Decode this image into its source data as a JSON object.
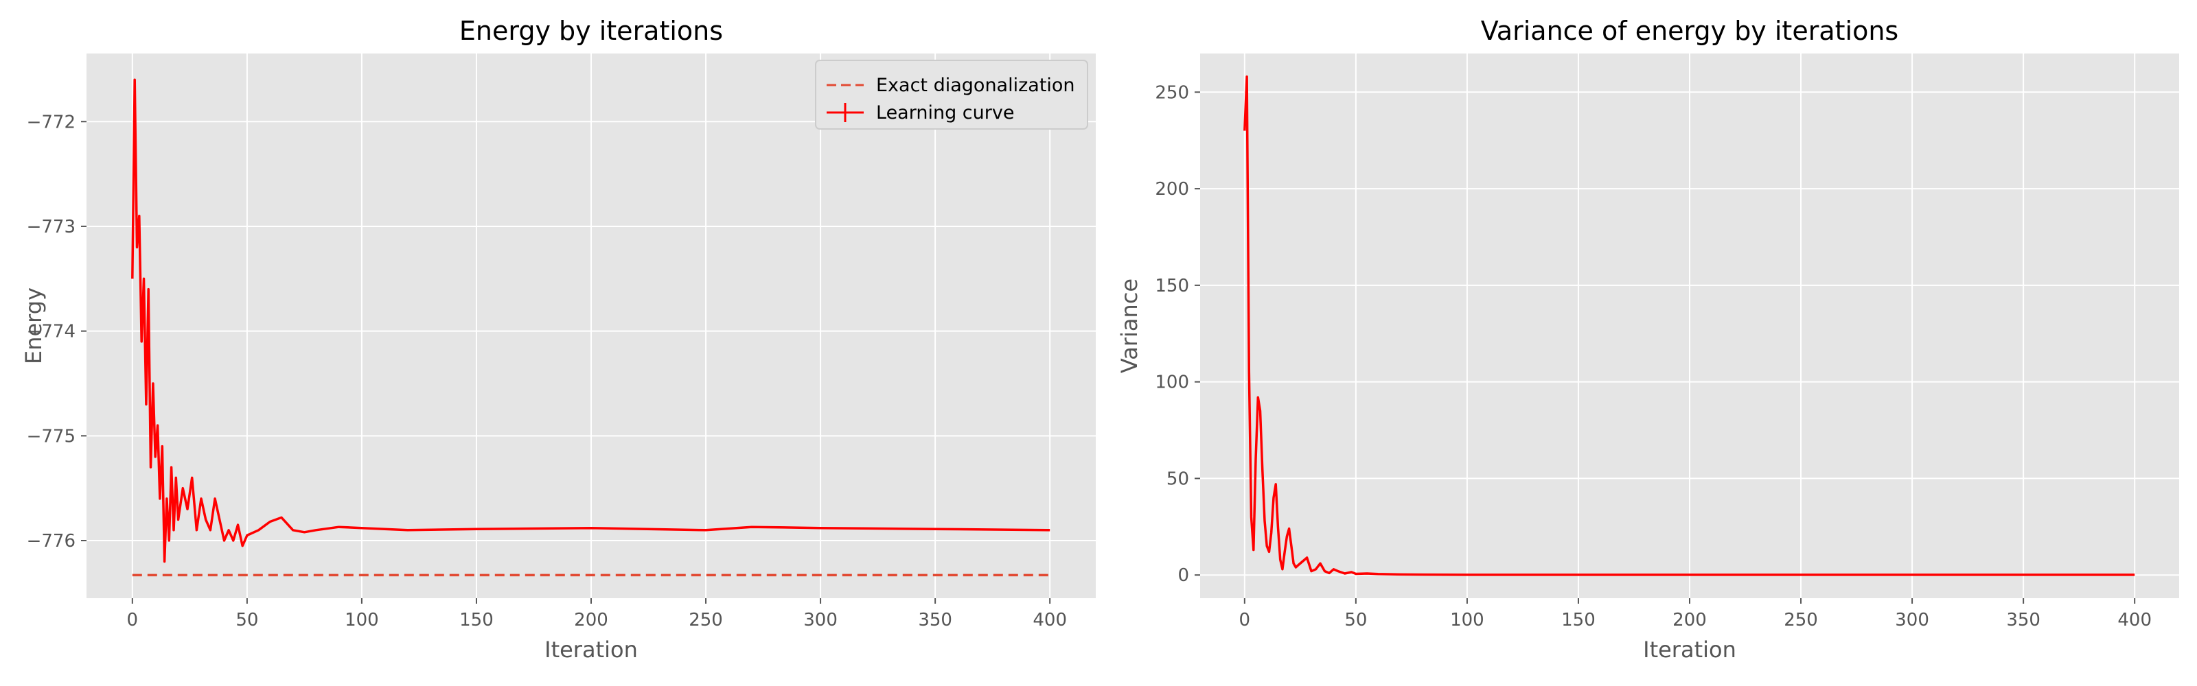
{
  "chart_data": [
    {
      "type": "line",
      "title": "Energy by iterations",
      "xlabel": "Iteration",
      "ylabel": "Energy",
      "xlim": [
        -20,
        420
      ],
      "ylim": [
        -776.55,
        -771.35
      ],
      "xticks": [
        0,
        50,
        100,
        150,
        200,
        250,
        300,
        350,
        400
      ],
      "yticks": [
        -776,
        -775,
        -774,
        -773,
        -772
      ],
      "ytick_labels": [
        "−776",
        "−775",
        "−774",
        "−773",
        "−772"
      ],
      "grid": true,
      "legend": "top-right",
      "series": [
        {
          "name": "Exact diagonalization",
          "style": "dashed",
          "color": "#e24a33",
          "x": [
            0,
            400
          ],
          "y": [
            -776.33,
            -776.33
          ]
        },
        {
          "name": "Learning curve",
          "style": "solid",
          "color": "#ff0000",
          "x": [
            0,
            1,
            2,
            3,
            4,
            5,
            6,
            7,
            8,
            9,
            10,
            11,
            12,
            13,
            14,
            15,
            16,
            17,
            18,
            19,
            20,
            22,
            24,
            26,
            28,
            30,
            32,
            34,
            36,
            38,
            40,
            42,
            44,
            46,
            48,
            50,
            55,
            60,
            65,
            70,
            75,
            80,
            90,
            100,
            120,
            150,
            200,
            250,
            270,
            300,
            350,
            400
          ],
          "y": [
            -773.5,
            -771.6,
            -773.2,
            -772.9,
            -774.1,
            -773.5,
            -774.7,
            -773.6,
            -775.3,
            -774.5,
            -775.2,
            -774.9,
            -775.6,
            -775.1,
            -776.2,
            -775.6,
            -776.0,
            -775.3,
            -775.9,
            -775.4,
            -775.8,
            -775.5,
            -775.7,
            -775.4,
            -775.9,
            -775.6,
            -775.8,
            -775.9,
            -775.6,
            -775.8,
            -776.0,
            -775.9,
            -776.0,
            -775.85,
            -776.05,
            -775.95,
            -775.9,
            -775.82,
            -775.78,
            -775.9,
            -775.92,
            -775.9,
            -775.87,
            -775.88,
            -775.9,
            -775.89,
            -775.88,
            -775.9,
            -775.87,
            -775.88,
            -775.89,
            -775.9
          ]
        }
      ]
    },
    {
      "type": "line",
      "title": "Variance of energy by iterations",
      "xlabel": "Iteration",
      "ylabel": "Variance",
      "xlim": [
        -20,
        420
      ],
      "ylim": [
        -12,
        270
      ],
      "xticks": [
        0,
        50,
        100,
        150,
        200,
        250,
        300,
        350,
        400
      ],
      "yticks": [
        0,
        50,
        100,
        150,
        200,
        250
      ],
      "grid": true,
      "series": [
        {
          "color": "#ff0000",
          "x": [
            0,
            1,
            2,
            3,
            4,
            5,
            6,
            7,
            8,
            9,
            10,
            11,
            12,
            13,
            14,
            15,
            16,
            17,
            18,
            19,
            20,
            21,
            22,
            23,
            24,
            26,
            28,
            30,
            32,
            34,
            36,
            38,
            40,
            42,
            45,
            48,
            50,
            55,
            60,
            70,
            80,
            100,
            150,
            200,
            250,
            300,
            350,
            400
          ],
          "y": [
            230,
            258,
            105,
            30,
            13,
            60,
            92,
            85,
            55,
            28,
            15,
            12,
            22,
            40,
            47,
            25,
            8,
            3,
            12,
            20,
            24,
            15,
            6,
            4,
            5,
            7,
            9,
            2,
            3,
            6,
            2,
            1,
            3,
            2,
            0.8,
            1.5,
            0.6,
            0.8,
            0.5,
            0.3,
            0.2,
            0.1,
            0.1,
            0.1,
            0.1,
            0.1,
            0.1,
            0.1
          ]
        }
      ]
    }
  ]
}
